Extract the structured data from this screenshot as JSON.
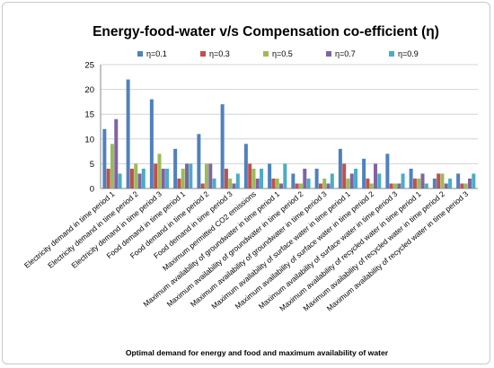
{
  "chart_data": {
    "type": "bar",
    "title": "Energy-food-water v/s Compensation co-efficient (η)",
    "xlabel": "Optimal demand for energy and food and maximum availability of water",
    "ylabel": "",
    "ylim": [
      0,
      25
    ],
    "yticks": [
      0,
      5,
      10,
      15,
      20,
      25
    ],
    "grid": true,
    "legend_position": "top",
    "categories": [
      "Electricity demand in time period 1",
      "Electricity demand in time period 2",
      "Electricity demand in time period 3",
      "Food demand in time period 1",
      "Food demand in time period 2",
      "Food demand in time period 3",
      "Maximum permitted CO2 emissions",
      "Maximum availability of groundwater in time period 1",
      "Maximum availability of groundwater in time period 2",
      "Maximum availability of groundwater in time period 3",
      "Maximum availability of surface water in time period 1",
      "Maximum availability of surface water in time period 2",
      "Maximum availability of surface water in time period 3",
      "Maximum availability of recycled water in time period 1",
      "Maximum availability of recycled water in time period 2",
      "Maximum availability of recycled water in time period 3"
    ],
    "series": [
      {
        "name": "η=0.1",
        "color": "#4f81bd",
        "values": [
          12,
          22,
          18,
          8,
          11,
          17,
          9,
          5,
          3,
          4,
          8,
          6,
          7,
          4,
          2,
          3
        ]
      },
      {
        "name": "η=0.3",
        "color": "#c0504d",
        "values": [
          4,
          4,
          5,
          2,
          1,
          4,
          5,
          2,
          1,
          1,
          5,
          2,
          1,
          2,
          3,
          1
        ]
      },
      {
        "name": "η=0.5",
        "color": "#9bbb59",
        "values": [
          9,
          5,
          7,
          4,
          5,
          2,
          4,
          2,
          1,
          2,
          2,
          1,
          1,
          2,
          3,
          1
        ]
      },
      {
        "name": "η=0.7",
        "color": "#8064a2",
        "values": [
          14,
          3,
          4,
          5,
          5,
          1,
          2,
          1,
          4,
          1,
          3,
          5,
          1,
          3,
          1,
          2
        ]
      },
      {
        "name": "η=0.9",
        "color": "#4bacc6",
        "values": [
          3,
          4,
          4,
          5,
          2,
          3,
          4,
          5,
          2,
          3,
          4,
          3,
          3,
          1,
          2,
          3
        ]
      }
    ]
  }
}
